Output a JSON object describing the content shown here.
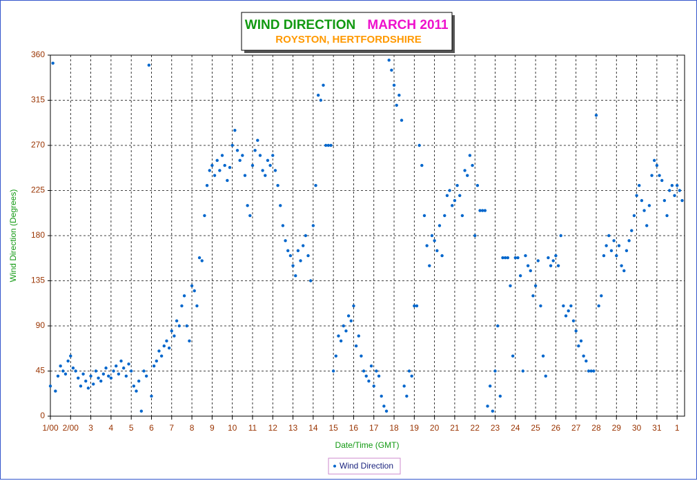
{
  "chart_data": {
    "type": "scatter",
    "title": "WIND DIRECTION",
    "title_date": "MARCH 2011",
    "subtitle": "ROYSTON, HERTFORDSHIRE",
    "x_label": "Date/Time (GMT)",
    "y_label": "Wind Direction (Degrees)",
    "xlim": [
      0,
      31.37
    ],
    "ylim": [
      0,
      360
    ],
    "xticks": [
      {
        "value": 0,
        "label": "1/00"
      },
      {
        "value": 1,
        "label": "2/00"
      },
      {
        "value": 2,
        "label": "3"
      },
      {
        "value": 3,
        "label": "4"
      },
      {
        "value": 4,
        "label": "5"
      },
      {
        "value": 5,
        "label": "6"
      },
      {
        "value": 6,
        "label": "7"
      },
      {
        "value": 7,
        "label": "8"
      },
      {
        "value": 8,
        "label": "9"
      },
      {
        "value": 9,
        "label": "10"
      },
      {
        "value": 10,
        "label": "11"
      },
      {
        "value": 11,
        "label": "12"
      },
      {
        "value": 12,
        "label": "13"
      },
      {
        "value": 13,
        "label": "14"
      },
      {
        "value": 14,
        "label": "15"
      },
      {
        "value": 15,
        "label": "16"
      },
      {
        "value": 16,
        "label": "17"
      },
      {
        "value": 17,
        "label": "18"
      },
      {
        "value": 18,
        "label": "19"
      },
      {
        "value": 19,
        "label": "20"
      },
      {
        "value": 20,
        "label": "21"
      },
      {
        "value": 21,
        "label": "22"
      },
      {
        "value": 22,
        "label": "23"
      },
      {
        "value": 23,
        "label": "24"
      },
      {
        "value": 24,
        "label": "25"
      },
      {
        "value": 25,
        "label": "26"
      },
      {
        "value": 26,
        "label": "27"
      },
      {
        "value": 27,
        "label": "28"
      },
      {
        "value": 28,
        "label": "29"
      },
      {
        "value": 29,
        "label": "30"
      },
      {
        "value": 30,
        "label": "31"
      },
      {
        "value": 31,
        "label": "1"
      }
    ],
    "yticks": [
      0,
      45,
      90,
      135,
      180,
      225,
      270,
      315,
      360
    ],
    "grid": true,
    "x": [
      0,
      0.125,
      0.25,
      0.375,
      0.5,
      0.625,
      0.75,
      0.875,
      1,
      1.125,
      1.25,
      1.375,
      1.5,
      1.625,
      1.75,
      1.875,
      2,
      2.125,
      2.25,
      2.375,
      2.5,
      2.625,
      2.75,
      2.875,
      3,
      3.125,
      3.25,
      3.375,
      3.5,
      3.625,
      3.75,
      3.875,
      4,
      4.125,
      4.25,
      4.375,
      4.5,
      4.625,
      4.75,
      4.875,
      5,
      5.125,
      5.25,
      5.375,
      5.5,
      5.625,
      5.75,
      5.875,
      6,
      6.125,
      6.25,
      6.375,
      6.5,
      6.625,
      6.75,
      6.875,
      7,
      7.125,
      7.25,
      7.375,
      7.5,
      7.625,
      7.75,
      7.875,
      8,
      8.125,
      8.25,
      8.375,
      8.5,
      8.625,
      8.75,
      8.875,
      9,
      9.125,
      9.25,
      9.375,
      9.5,
      9.625,
      9.75,
      9.875,
      10,
      10.125,
      10.25,
      10.375,
      10.5,
      10.625,
      10.75,
      10.875,
      11,
      11.125,
      11.25,
      11.375,
      11.5,
      11.625,
      11.75,
      11.875,
      12,
      12.125,
      12.25,
      12.375,
      12.5,
      12.625,
      12.75,
      12.875,
      13,
      13.125,
      13.25,
      13.375,
      13.5,
      13.625,
      13.75,
      13.875,
      14,
      14.125,
      14.25,
      14.375,
      14.5,
      14.625,
      14.75,
      14.875,
      15,
      15.125,
      15.25,
      15.375,
      15.5,
      15.625,
      15.75,
      15.875,
      16,
      16.125,
      16.25,
      16.375,
      16.5,
      16.625,
      16.75,
      16.875,
      17,
      17.125,
      17.25,
      17.375,
      17.5,
      17.625,
      17.75,
      17.875,
      18,
      18.125,
      18.25,
      18.375,
      18.5,
      18.625,
      18.75,
      18.875,
      19,
      19.125,
      19.25,
      19.375,
      19.5,
      19.625,
      19.75,
      19.875,
      20,
      20.125,
      20.25,
      20.375,
      20.5,
      20.625,
      20.75,
      20.875,
      21,
      21.125,
      21.25,
      21.375,
      21.5,
      21.625,
      21.75,
      21.875,
      22,
      22.125,
      22.25,
      22.375,
      22.5,
      22.625,
      22.75,
      22.875,
      23,
      23.125,
      23.25,
      23.375,
      23.5,
      23.625,
      23.75,
      23.875,
      24,
      24.125,
      24.25,
      24.375,
      24.5,
      24.625,
      24.75,
      24.875,
      25,
      25.125,
      25.25,
      25.375,
      25.5,
      25.625,
      25.75,
      25.875,
      26,
      26.125,
      26.25,
      26.375,
      26.5,
      26.625,
      26.75,
      26.875,
      27,
      27.125,
      27.25,
      27.375,
      27.5,
      27.625,
      27.75,
      27.875,
      28,
      28.125,
      28.25,
      28.375,
      28.5,
      28.625,
      28.75,
      28.875,
      29,
      29.125,
      29.25,
      29.375,
      29.5,
      29.625,
      29.75,
      29.875,
      30,
      30.125,
      30.25,
      30.375,
      30.5,
      30.625,
      30.75,
      30.875,
      31,
      31.125,
      31.25
    ],
    "series": [
      {
        "name": "Wind Direction",
        "color": "#0066cc",
        "values": [
          30,
          352,
          25,
          40,
          50,
          45,
          42,
          55,
          60,
          48,
          45,
          38,
          30,
          42,
          35,
          28,
          40,
          32,
          45,
          38,
          35,
          42,
          48,
          40,
          38,
          45,
          50,
          42,
          55,
          48,
          40,
          52,
          45,
          30,
          25,
          35,
          5,
          45,
          40,
          350,
          20,
          50,
          55,
          65,
          60,
          70,
          75,
          68,
          85,
          80,
          95,
          90,
          110,
          120,
          90,
          75,
          130,
          125,
          110,
          158,
          155,
          200,
          230,
          245,
          250,
          240,
          255,
          245,
          260,
          250,
          235,
          248,
          270,
          285,
          265,
          255,
          260,
          240,
          210,
          200,
          250,
          265,
          275,
          260,
          245,
          240,
          255,
          250,
          260,
          245,
          230,
          210,
          190,
          175,
          165,
          160,
          150,
          140,
          165,
          155,
          170,
          180,
          160,
          135,
          190,
          230,
          320,
          315,
          330,
          270,
          270,
          270,
          45,
          60,
          80,
          75,
          90,
          85,
          100,
          95,
          110,
          70,
          80,
          60,
          45,
          40,
          35,
          50,
          30,
          45,
          40,
          20,
          10,
          5,
          355,
          345,
          330,
          310,
          320,
          295,
          30,
          20,
          45,
          40,
          110,
          110,
          270,
          250,
          200,
          170,
          150,
          180,
          175,
          165,
          190,
          160,
          200,
          220,
          225,
          210,
          215,
          230,
          220,
          200,
          245,
          240,
          260,
          250,
          180,
          230,
          205,
          205,
          205,
          10,
          30,
          5,
          45,
          90,
          20,
          158,
          158,
          158,
          130,
          60,
          158,
          158,
          140,
          45,
          160,
          150,
          145,
          120,
          130,
          155,
          110,
          60,
          40,
          158,
          150,
          155,
          160,
          150,
          180,
          110,
          100,
          105,
          110,
          95,
          85,
          70,
          75,
          60,
          55,
          45,
          45,
          45,
          300,
          110,
          120,
          160,
          170,
          180,
          165,
          175,
          160,
          170,
          150,
          145,
          165,
          175,
          185,
          200,
          220,
          230,
          215,
          205,
          190,
          210,
          240,
          255,
          250,
          240,
          235,
          215,
          200,
          225,
          230,
          220,
          230,
          225,
          215
        ]
      }
    ]
  }
}
